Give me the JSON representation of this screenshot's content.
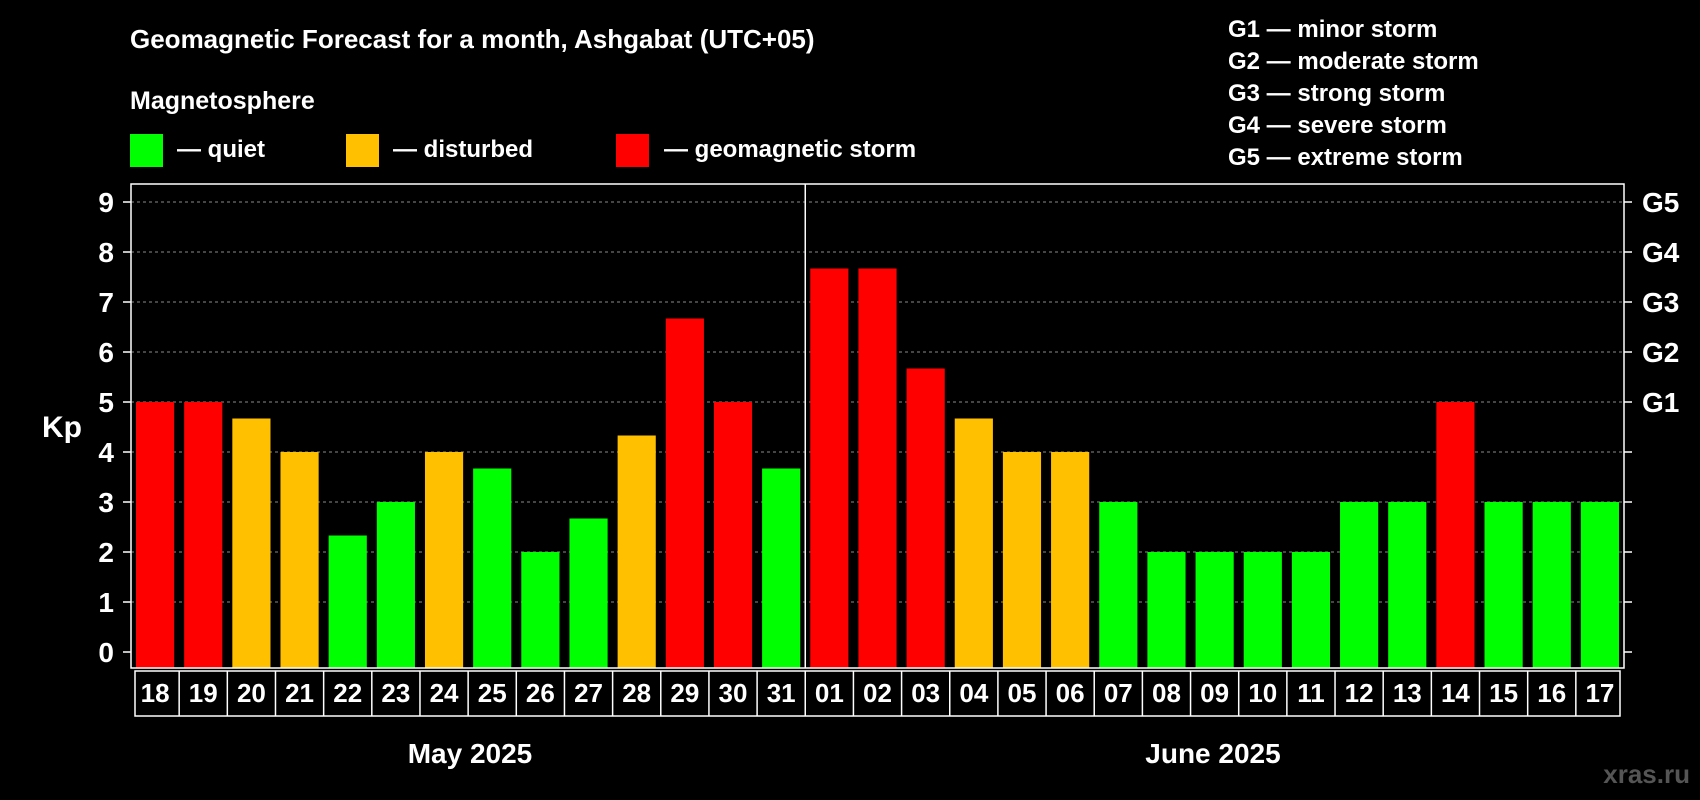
{
  "chart_data": {
    "type": "bar",
    "title": "Geomagnetic Forecast for a month, Ashgabat (UTC+05)",
    "ylabel": "Kp",
    "ylim": [
      0,
      9
    ],
    "yticks": [
      "0",
      "1",
      "2",
      "3",
      "4",
      "5",
      "6",
      "7",
      "8",
      "9"
    ],
    "right_axis": [
      {
        "kp": 5,
        "label": "G1"
      },
      {
        "kp": 6,
        "label": "G2"
      },
      {
        "kp": 7,
        "label": "G3"
      },
      {
        "kp": 8,
        "label": "G4"
      },
      {
        "kp": 9,
        "label": "G5"
      }
    ],
    "legend_title": "Magnetosphere",
    "legend": [
      {
        "name": "— quiet",
        "color": "#00ff00"
      },
      {
        "name": "— disturbed",
        "color": "#ffc000"
      },
      {
        "name": "— geomagnetic storm",
        "color": "#ff0000"
      }
    ],
    "storm_scale": [
      "G1 — minor storm",
      "G2 — moderate storm",
      "G3 — strong storm",
      "G4 — severe storm",
      "G5 — extreme storm"
    ],
    "categories": [
      "18",
      "19",
      "20",
      "21",
      "22",
      "23",
      "24",
      "25",
      "26",
      "27",
      "28",
      "29",
      "30",
      "31",
      "01",
      "02",
      "03",
      "04",
      "05",
      "06",
      "07",
      "08",
      "09",
      "10",
      "11",
      "12",
      "13",
      "14",
      "15",
      "16",
      "17"
    ],
    "values": [
      5,
      5,
      4.67,
      4,
      2.33,
      3,
      4,
      3.67,
      2,
      2.67,
      4.33,
      6.67,
      5,
      3.67,
      7.67,
      7.67,
      5.67,
      4.67,
      4,
      4,
      3,
      2,
      2,
      2,
      2,
      3,
      3,
      5,
      3,
      3,
      3
    ],
    "levels": [
      "storm",
      "storm",
      "disturbed",
      "disturbed",
      "quiet",
      "quiet",
      "disturbed",
      "quiet",
      "quiet",
      "quiet",
      "disturbed",
      "storm",
      "storm",
      "quiet",
      "storm",
      "storm",
      "storm",
      "disturbed",
      "disturbed",
      "disturbed",
      "quiet",
      "quiet",
      "quiet",
      "quiet",
      "quiet",
      "quiet",
      "quiet",
      "storm",
      "quiet",
      "quiet",
      "quiet"
    ],
    "level_colors": {
      "quiet": "#00ff00",
      "disturbed": "#ffc000",
      "storm": "#ff0000"
    },
    "months": [
      {
        "label": "May 2025",
        "count": 14
      },
      {
        "label": "June 2025",
        "count": 17
      }
    ],
    "grid": true
  },
  "watermark": "xras.ru"
}
